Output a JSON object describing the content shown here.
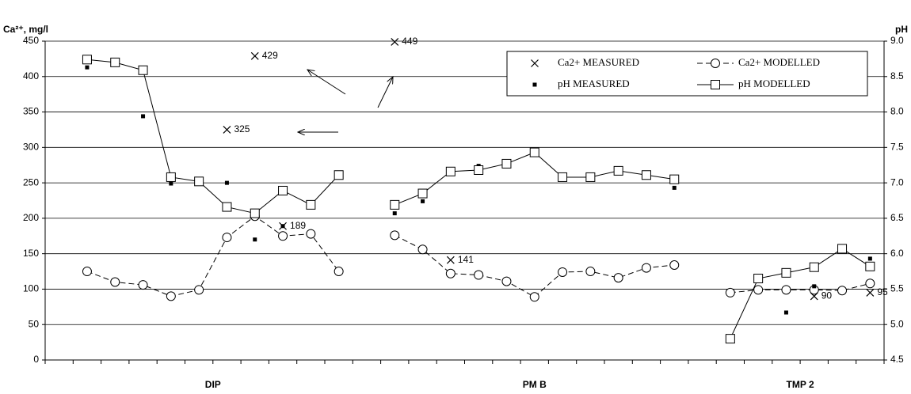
{
  "chart_data": {
    "type": "line",
    "y_label": "Ca²⁺, mg/l",
    "y2_label": "pH",
    "categories": [
      null,
      null,
      null,
      null,
      null,
      null,
      null,
      null,
      null,
      null,
      null,
      null,
      null,
      null,
      null,
      null,
      null,
      null,
      null,
      null,
      null,
      null,
      null,
      null,
      null,
      null,
      null,
      null,
      null,
      null
    ],
    "groups": [
      "DIP",
      "PM B",
      "TMP 2"
    ],
    "ylim": [
      0,
      450
    ],
    "yticks": [
      0,
      50,
      100,
      150,
      200,
      250,
      300,
      350,
      400,
      450
    ],
    "y2lim": [
      4.5,
      9.0
    ],
    "y2ticks": [
      4.5,
      {
        "value": 5,
        "label": "5.0"
      },
      5.5,
      {
        "value": 6,
        "label": "6.0"
      },
      6.5,
      {
        "value": 7,
        "label": "7.0"
      },
      7.5,
      {
        "value": 8,
        "label": "8.0"
      },
      8.5,
      {
        "value": 9,
        "label": "9.0"
      }
    ],
    "grid": true,
    "series": [
      {
        "name": "Ca2+ MEASURED",
        "color": "#000000",
        "marker": "x",
        "line": "none",
        "data_labels": true,
        "values": [
          null,
          null,
          null,
          null,
          null,
          null,
          325,
          429,
          189,
          null,
          null,
          null,
          449,
          null,
          141,
          null,
          null,
          null,
          null,
          null,
          null,
          null,
          null,
          null,
          null,
          null,
          null,
          90,
          null,
          95
        ]
      },
      {
        "name": "Ca2+ MODELLED",
        "color": "#000000",
        "marker": "circle",
        "line": "dashed",
        "values": [
          null,
          125,
          110,
          106,
          90,
          99,
          173,
          203,
          175,
          178,
          125,
          null,
          176,
          156,
          122,
          120,
          111,
          89,
          124,
          125,
          116,
          130,
          134,
          null,
          95,
          99,
          99,
          99,
          98,
          108
        ]
      },
      {
        "name": "pH MEASURED",
        "color": "#000000",
        "marker": "dot",
        "line": "none",
        "axis": "y2",
        "values": [
          null,
          8.63,
          null,
          7.94,
          6.99,
          null,
          7.0,
          6.2,
          6.39,
          null,
          null,
          null,
          6.57,
          6.74,
          7.15,
          7.24,
          null,
          null,
          7.05,
          null,
          null,
          null,
          6.93,
          null,
          null,
          null,
          5.17,
          5.54,
          null,
          5.93
        ]
      },
      {
        "name": "pH MODELLED",
        "color": "#000000",
        "marker": "square",
        "line": "solid",
        "axis": "y2",
        "values": [
          null,
          8.74,
          8.7,
          8.59,
          7.08,
          7.02,
          6.66,
          6.57,
          6.89,
          6.69,
          7.11,
          null,
          6.69,
          6.85,
          7.16,
          7.18,
          7.27,
          7.43,
          7.08,
          7.08,
          7.17,
          7.11,
          7.05,
          null,
          4.8,
          5.65,
          5.73,
          5.81,
          6.07,
          5.82
        ]
      }
    ]
  }
}
